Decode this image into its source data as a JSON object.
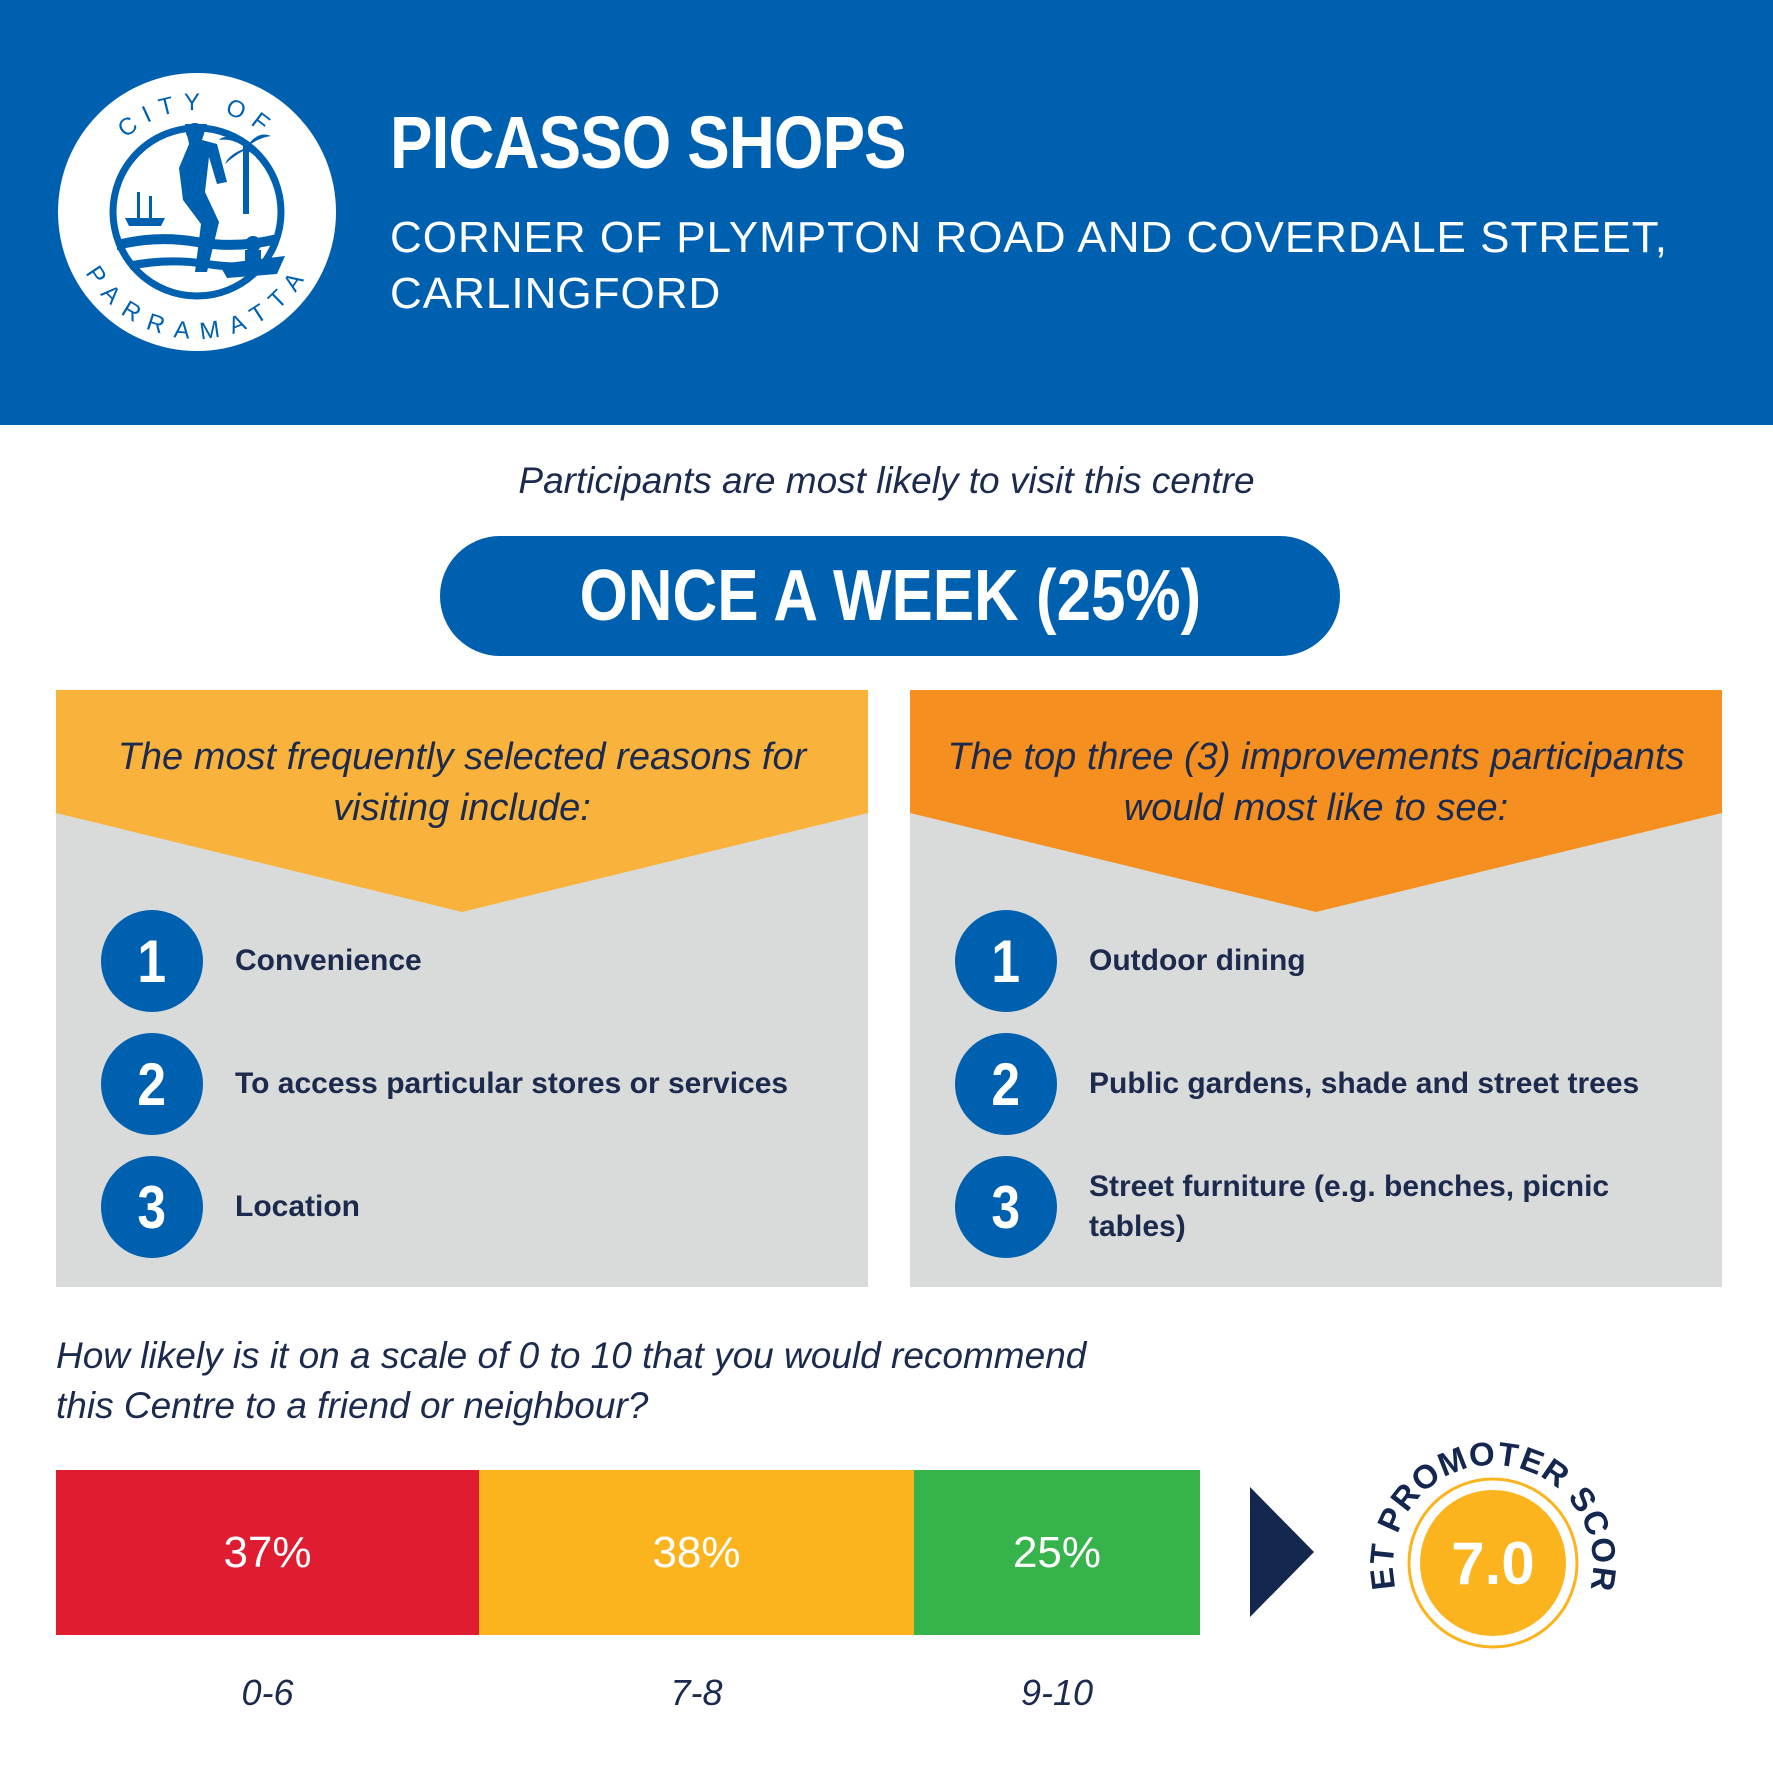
{
  "header": {
    "logo_text_top": "CITY OF",
    "logo_text_bottom": "PARRAMATTA",
    "title": "PICASSO SHOPS",
    "address_line1": "CORNER OF PLYMPTON ROAD AND COVERDALE STREET,",
    "address_line2": "CARLINGFORD"
  },
  "frequency": {
    "intro": "Participants are most likely to visit this centre",
    "value": "ONCE A WEEK (25%)"
  },
  "reasons": {
    "title_line1": "The most frequently selected reasons for",
    "title_line2": "visiting include:",
    "items": [
      {
        "rank": "1",
        "label": "Convenience"
      },
      {
        "rank": "2",
        "label": "To access particular stores or services"
      },
      {
        "rank": "3",
        "label": "Location"
      }
    ]
  },
  "improvements": {
    "title_line1": "The top three (3) improvements participants",
    "title_line2": "would most like to see:",
    "items": [
      {
        "rank": "1",
        "label": "Outdoor dining"
      },
      {
        "rank": "2",
        "label": "Public gardens, shade and street trees"
      },
      {
        "rank": "3",
        "label": "Street furniture (e.g. benches, picnic tables)"
      }
    ]
  },
  "nps_question": {
    "line1": "How likely is it on a scale of 0 to 10 that you would recommend",
    "line2": "this Centre to a friend or neighbour?"
  },
  "chart_data": {
    "type": "bar",
    "stacked": true,
    "orientation": "horizontal",
    "categories": [
      "0-6",
      "7-8",
      "9-10"
    ],
    "values": [
      37,
      38,
      25
    ],
    "value_labels": [
      "37%",
      "38%",
      "25%"
    ],
    "colors": [
      "#e01c31",
      "#fbb41d",
      "#36b34a"
    ]
  },
  "nps": {
    "label": "NET PROMOTER SCORE",
    "value": "7.0",
    "color": "#fbb41d"
  },
  "colors": {
    "brand_blue": "#0060b0",
    "reasons_header": "#f9b33c",
    "improvements_header": "#f58f20",
    "panel_grey": "#d9dbda",
    "text_navy": "#1c2a4d"
  }
}
